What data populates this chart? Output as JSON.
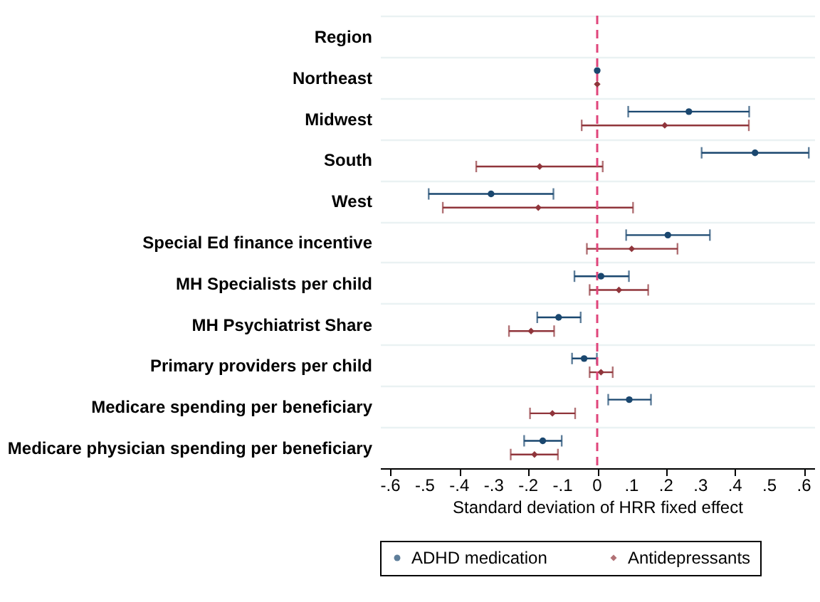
{
  "chart_data": {
    "type": "scatter",
    "orientation": "horizontal",
    "categories": [
      "Region",
      "Northeast",
      "Midwest",
      "South",
      "West",
      "Special Ed finance incentive",
      "MH Specialists per child",
      "MH Psychiatrist Share",
      "Primary providers per child",
      "Medicare spending per beneficiary",
      "Medicare physician spending per beneficiary"
    ],
    "series": [
      {
        "name": "ADHD medication",
        "color": "#1a476f",
        "marker": "circle",
        "values": [
          null,
          0,
          0.266,
          0.458,
          -0.308,
          0.205,
          0.011,
          -0.112,
          -0.038,
          0.093,
          -0.158
        ],
        "errors": [
          null,
          null,
          [
            0.09,
            0.441
          ],
          [
            0.303,
            0.614
          ],
          [
            -0.489,
            -0.127
          ],
          [
            0.084,
            0.327
          ],
          [
            -0.066,
            0.092
          ],
          [
            -0.174,
            -0.048
          ],
          [
            -0.073,
            -0.001
          ],
          [
            0.032,
            0.156
          ],
          [
            -0.212,
            -0.103
          ]
        ]
      },
      {
        "name": "Antidepressants",
        "color": "#90353b",
        "marker": "diamond",
        "values": [
          null,
          0,
          0.196,
          -0.167,
          -0.171,
          0.1,
          0.063,
          -0.192,
          0.011,
          -0.13,
          -0.182
        ],
        "errors": [
          null,
          null,
          [
            -0.045,
            0.44
          ],
          [
            -0.351,
            0.016
          ],
          [
            -0.448,
            0.104
          ],
          [
            -0.03,
            0.233
          ],
          [
            -0.022,
            0.148
          ],
          [
            -0.256,
            -0.125
          ],
          [
            -0.022,
            0.045
          ],
          [
            -0.195,
            -0.064
          ],
          [
            -0.251,
            -0.114
          ]
        ]
      }
    ],
    "xlabel": "Standard deviation of HRR fixed effect",
    "xlim": [
      -0.63,
      0.63
    ],
    "xticks": [
      {
        "value": -0.6,
        "label": "-.6"
      },
      {
        "value": -0.5,
        "label": "-.5"
      },
      {
        "value": -0.4,
        "label": "-.4"
      },
      {
        "value": -0.3,
        "label": "-.3"
      },
      {
        "value": -0.2,
        "label": "-.2"
      },
      {
        "value": -0.1,
        "label": "-.1"
      },
      0,
      {
        "value": 0.1,
        "label": ".1"
      },
      {
        "value": 0.2,
        "label": ".2"
      },
      {
        "value": 0.3,
        "label": ".3"
      },
      {
        "value": 0.4,
        "label": ".4"
      },
      {
        "value": 0.5,
        "label": ".5"
      },
      {
        "value": 0.6,
        "label": ".6"
      }
    ],
    "ref_lines": [
      {
        "axis": "x",
        "value": 0,
        "color": "#e0457b",
        "line_style": "dashed"
      }
    ],
    "grid": "y",
    "legend": "bottom"
  }
}
